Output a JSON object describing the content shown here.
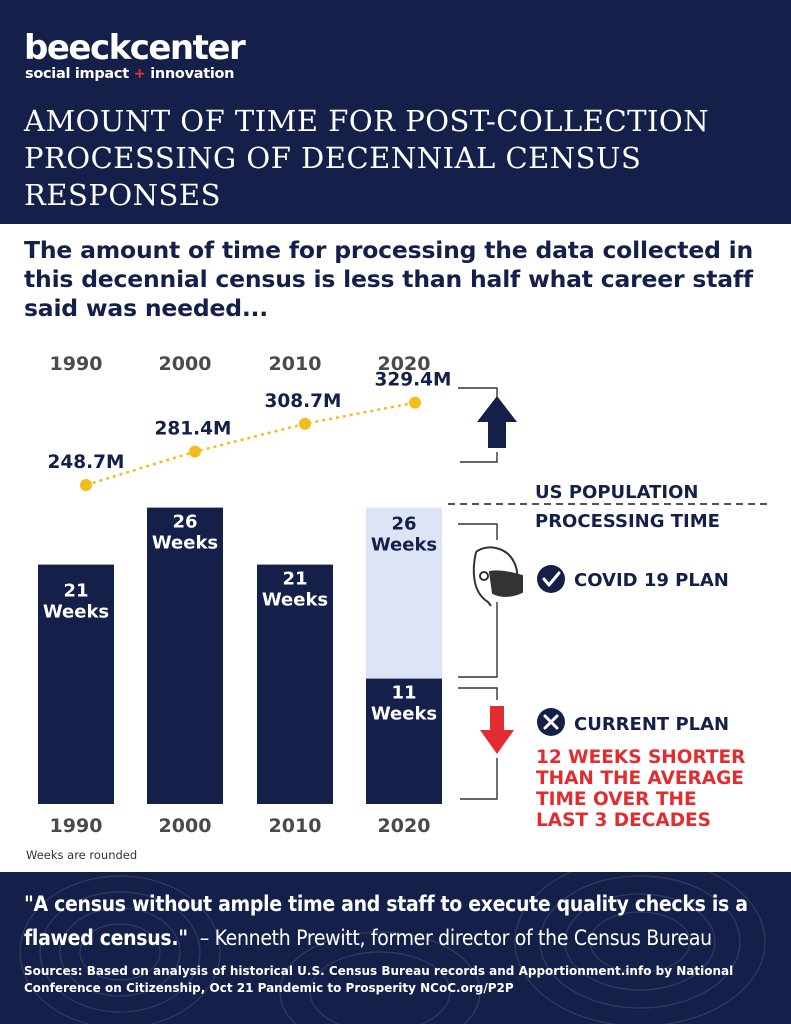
{
  "brand": {
    "name": "beeckcenter",
    "tagline_a": "social impact",
    "tagline_plus": "+",
    "tagline_b": "innovation"
  },
  "title": "AMOUNT OF TIME FOR POST-COLLECTION PROCESSING OF DECENNIAL CENSUS RESPONSES",
  "subtitle": "The amount of time for processing the data collected in this decennial census is less than half what career staff said was needed...",
  "colors": {
    "navy": "#142049",
    "light_blue": "#dce4f5",
    "gold": "#f5bc1c",
    "red": "#e12d30"
  },
  "chart_data": {
    "type": "bar",
    "categories": [
      "1990",
      "2000",
      "2010",
      "2020"
    ],
    "processing_weeks": [
      21,
      26,
      21,
      11
    ],
    "covid_plan_weeks_2020": 26,
    "bar_labels": [
      "21\nWeeks",
      "26\nWeeks",
      "21\nWeeks",
      "11\nWeeks"
    ],
    "covid_bar_label": "26\nWeeks",
    "population_labels": [
      "248.7M",
      "281.4M",
      "308.7M",
      "329.4M"
    ],
    "population_millions": [
      248.7,
      281.4,
      308.7,
      329.4
    ],
    "ylim_weeks": [
      0,
      30
    ],
    "legend_population": "US  POPULATION",
    "legend_processing": "PROCESSING TIME",
    "covid_plan_label": "COVID 19 PLAN",
    "current_plan_label": "CURRENT PLAN",
    "shorter_note": [
      "12 WEEKS SHORTER",
      "THAN THE AVERAGE",
      "TIME OVER THE",
      "LAST 3 DECADES"
    ],
    "icons": [
      "up-arrow-icon",
      "mask-face-icon",
      "check-circle-icon",
      "x-circle-icon",
      "down-arrow-icon"
    ]
  },
  "note": "Weeks are rounded",
  "quote": "\"A census without ample time and staff to execute quality checks is a flawed census.\"",
  "quote_attribution": "– Kenneth Prewitt, former director of the Census Bureau",
  "sources": "Sources: Based on analysis of historical U.S. Census Bureau records and Apportionment.info by National Conference on Citizenship, Oct 21 Pandemic to Prosperity NCoC.org/P2P"
}
